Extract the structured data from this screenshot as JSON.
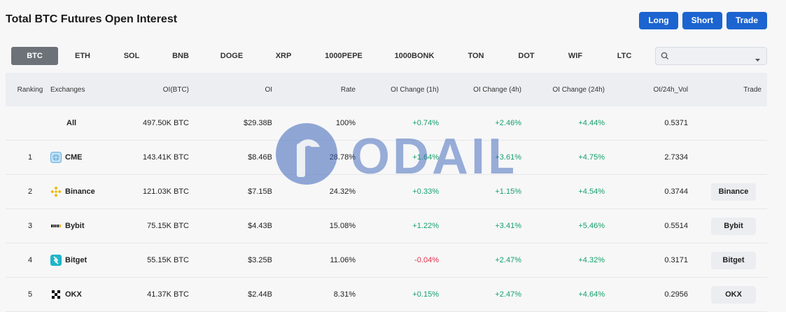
{
  "page": {
    "title": "Total BTC Futures Open Interest"
  },
  "actions": {
    "long": "Long",
    "short": "Short",
    "trade": "Trade",
    "color": "#1c64d0"
  },
  "tabs": [
    "BTC",
    "ETH",
    "SOL",
    "BNB",
    "DOGE",
    "XRP",
    "1000PEPE",
    "1000BONK",
    "TON",
    "DOT",
    "WIF",
    "LTC"
  ],
  "active_tab": "BTC",
  "search": {
    "value": "",
    "placeholder": ""
  },
  "table": {
    "headers": {
      "ranking": "Ranking",
      "exchanges": "Exchanges",
      "oi_btc": "OI(BTC)",
      "oi": "OI",
      "rate": "Rate",
      "ch1": "OI Change (1h)",
      "ch4": "OI Change (4h)",
      "ch24": "OI Change (24h)",
      "vol": "OI/24h_Vol",
      "trade": "Trade"
    },
    "rows": [
      {
        "rank": "",
        "exchange": "All",
        "oi_btc": "497.50K BTC",
        "oi": "$29.38B",
        "rate": "100%",
        "ch1": "+0.74%",
        "ch4": "+2.46%",
        "ch24": "+4.44%",
        "vol": "0.5371",
        "trade": ""
      },
      {
        "rank": "1",
        "exchange": "CME",
        "oi_btc": "143.41K BTC",
        "oi": "$8.46B",
        "rate": "28.78%",
        "ch1": "+1.64%",
        "ch4": "+3.61%",
        "ch24": "+4.75%",
        "vol": "2.7334",
        "trade": ""
      },
      {
        "rank": "2",
        "exchange": "Binance",
        "oi_btc": "121.03K BTC",
        "oi": "$7.15B",
        "rate": "24.32%",
        "ch1": "+0.33%",
        "ch4": "+1.15%",
        "ch24": "+4.54%",
        "vol": "0.3744",
        "trade": "Binance"
      },
      {
        "rank": "3",
        "exchange": "Bybit",
        "oi_btc": "75.15K BTC",
        "oi": "$4.43B",
        "rate": "15.08%",
        "ch1": "+1.22%",
        "ch4": "+3.41%",
        "ch24": "+5.46%",
        "vol": "0.5514",
        "trade": "Bybit"
      },
      {
        "rank": "4",
        "exchange": "Bitget",
        "oi_btc": "55.15K BTC",
        "oi": "$3.25B",
        "rate": "11.06%",
        "ch1": "-0.04%",
        "ch4": "+2.47%",
        "ch24": "+4.32%",
        "vol": "0.3171",
        "trade": "Bitget"
      },
      {
        "rank": "5",
        "exchange": "OKX",
        "oi_btc": "41.37K BTC",
        "oi": "$2.44B",
        "rate": "8.31%",
        "ch1": "+0.15%",
        "ch4": "+2.47%",
        "ch24": "+4.64%",
        "vol": "0.2956",
        "trade": "OKX"
      }
    ]
  },
  "watermark": {
    "text": "ODAILY"
  }
}
